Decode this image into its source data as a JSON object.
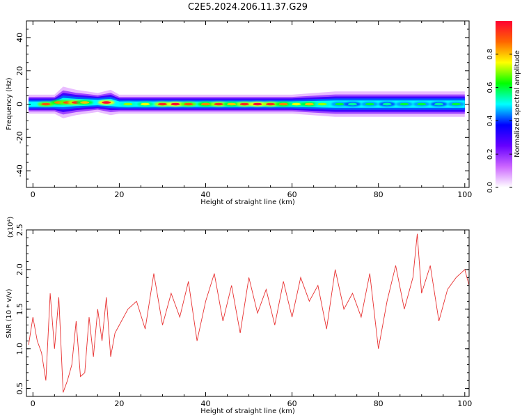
{
  "title": "C2E5.2024.206.11.37.G29",
  "chart_data": [
    {
      "type": "heatmap",
      "xlabel": "Height of straight line (km)",
      "ylabel": "Frequency (Hz)",
      "xlim": [
        -1.5,
        101
      ],
      "ylim": [
        -50,
        50
      ],
      "xticks": [
        "0",
        "20",
        "40",
        "60",
        "80",
        "100"
      ],
      "yticks": [
        "-40",
        "-20",
        "0",
        "20",
        "40"
      ],
      "colorbar": {
        "label": "Normalized spectral amplitude",
        "ticks": [
          "0.0",
          "0.2",
          "0.4",
          "0.6",
          "0.8"
        ],
        "range": [
          0,
          1
        ],
        "colors": [
          "#ffffff",
          "#cc66ff",
          "#6600ff",
          "#0000ff",
          "#00ffff",
          "#00ff00",
          "#ffff00",
          "#ff6600",
          "#ff0033"
        ]
      },
      "band": {
        "x": [
          -1,
          5,
          7,
          10,
          15,
          18,
          20,
          30,
          40,
          50,
          60,
          70,
          80,
          90,
          100
        ],
        "center_hz": [
          0,
          0,
          1,
          1,
          1,
          1,
          0,
          0,
          0,
          0,
          0,
          0,
          0,
          0,
          0
        ],
        "halfwidth_hz": [
          3,
          3,
          5,
          4,
          3,
          4,
          3,
          3,
          3,
          3,
          3,
          4,
          4,
          4,
          4
        ]
      },
      "peaks": [
        {
          "x": 3,
          "y": 0,
          "value": 0.9
        },
        {
          "x": 6,
          "y": 1,
          "value": 0.85
        },
        {
          "x": 8,
          "y": 1,
          "value": 0.9
        },
        {
          "x": 10,
          "y": 1,
          "value": 0.95
        },
        {
          "x": 12,
          "y": 1,
          "value": 0.8
        },
        {
          "x": 17,
          "y": 1,
          "value": 1.0
        },
        {
          "x": 22,
          "y": 0,
          "value": 0.7
        },
        {
          "x": 26,
          "y": 0,
          "value": 0.75
        },
        {
          "x": 30,
          "y": 0,
          "value": 0.95
        },
        {
          "x": 33,
          "y": 0,
          "value": 1.0
        },
        {
          "x": 36,
          "y": 0,
          "value": 0.9
        },
        {
          "x": 40,
          "y": 0,
          "value": 0.85
        },
        {
          "x": 43,
          "y": 0,
          "value": 0.95
        },
        {
          "x": 46,
          "y": 0,
          "value": 0.8
        },
        {
          "x": 49,
          "y": 0,
          "value": 0.95
        },
        {
          "x": 52,
          "y": 0,
          "value": 1.0
        },
        {
          "x": 55,
          "y": 0,
          "value": 0.95
        },
        {
          "x": 58,
          "y": 0,
          "value": 0.85
        },
        {
          "x": 61,
          "y": 0,
          "value": 0.75
        },
        {
          "x": 64,
          "y": 0,
          "value": 0.8
        },
        {
          "x": 67,
          "y": 0,
          "value": 0.7
        },
        {
          "x": 71,
          "y": 0,
          "value": 0.6
        },
        {
          "x": 74,
          "y": 0,
          "value": 0.55
        },
        {
          "x": 78,
          "y": 0,
          "value": 0.6
        },
        {
          "x": 82,
          "y": 0,
          "value": 0.55
        },
        {
          "x": 86,
          "y": 0,
          "value": 0.6
        },
        {
          "x": 90,
          "y": 0,
          "value": 0.6
        },
        {
          "x": 94,
          "y": 0,
          "value": 0.55
        },
        {
          "x": 98,
          "y": 0,
          "value": 0.6
        }
      ]
    },
    {
      "type": "line",
      "xlabel": "Height of straight line (km)",
      "ylabel": "SNR (10 * v/v)",
      "ylabel_scale": "(x10⁴)",
      "xlim": [
        -1.5,
        101
      ],
      "ylim": [
        0.4,
        2.5
      ],
      "xticks": [
        "0",
        "20",
        "40",
        "60",
        "80",
        "100"
      ],
      "yticks": [
        "0.5",
        "1.0",
        "1.5",
        "2.0",
        "2.5"
      ],
      "color": "#e83030",
      "series": [
        {
          "x": [
            -1,
            0,
            1,
            2,
            3,
            4,
            5,
            6,
            7,
            8,
            9,
            10,
            11,
            12,
            13,
            14,
            15,
            16,
            17,
            18,
            19,
            20,
            22,
            24,
            26,
            28,
            30,
            32,
            34,
            36,
            38,
            40,
            42,
            44,
            46,
            48,
            50,
            52,
            54,
            56,
            58,
            60,
            62,
            64,
            66,
            68,
            70,
            72,
            74,
            76,
            78,
            80,
            82,
            84,
            86,
            88,
            89,
            90,
            92,
            94,
            96,
            98,
            100,
            101
          ],
          "y": [
            1.05,
            1.4,
            1.1,
            0.95,
            0.6,
            1.7,
            1.0,
            1.65,
            0.45,
            0.6,
            0.8,
            1.35,
            0.65,
            0.7,
            1.4,
            0.9,
            1.5,
            1.1,
            1.65,
            0.9,
            1.2,
            1.3,
            1.5,
            1.6,
            1.25,
            1.95,
            1.3,
            1.7,
            1.4,
            1.85,
            1.1,
            1.6,
            1.95,
            1.35,
            1.8,
            1.2,
            1.9,
            1.45,
            1.75,
            1.3,
            1.85,
            1.4,
            1.9,
            1.6,
            1.8,
            1.25,
            2.0,
            1.5,
            1.7,
            1.4,
            1.95,
            1.0,
            1.6,
            2.05,
            1.5,
            1.9,
            2.45,
            1.7,
            2.05,
            1.35,
            1.75,
            1.9,
            2.0,
            1.8
          ]
        }
      ]
    }
  ]
}
